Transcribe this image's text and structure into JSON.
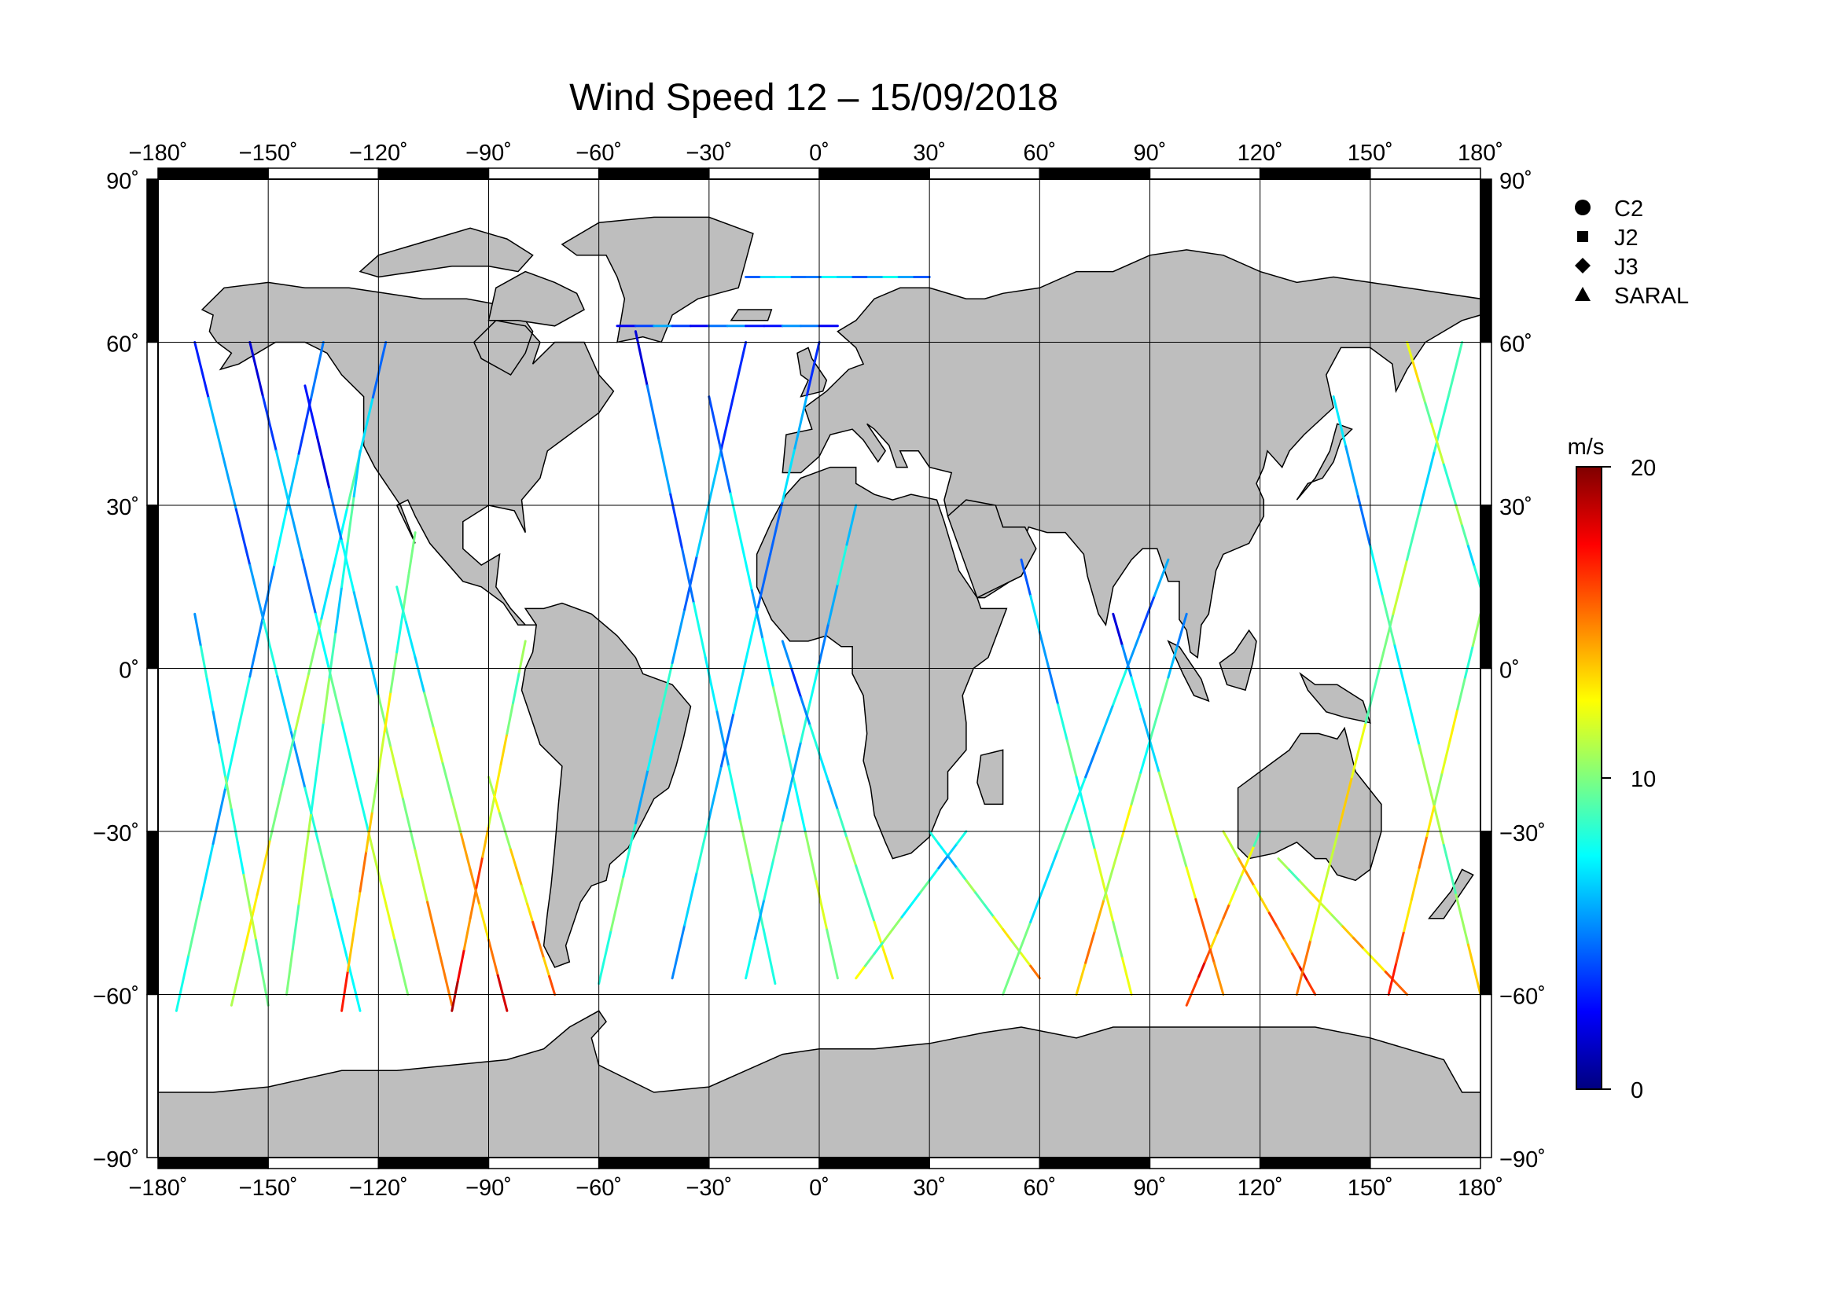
{
  "title": "Wind Speed 12 – 15/09/2018",
  "map": {
    "lon_range": [
      -180,
      180
    ],
    "lat_range": [
      -90,
      90
    ],
    "lon_ticks": [
      {
        "value": -180,
        "label": "−180˚"
      },
      {
        "value": -150,
        "label": "−150˚"
      },
      {
        "value": -120,
        "label": "−120˚"
      },
      {
        "value": -90,
        "label": "−90˚"
      },
      {
        "value": -60,
        "label": "−60˚"
      },
      {
        "value": -30,
        "label": "−30˚"
      },
      {
        "value": 0,
        "label": "0˚"
      },
      {
        "value": 30,
        "label": "30˚"
      },
      {
        "value": 60,
        "label": "60˚"
      },
      {
        "value": 90,
        "label": "90˚"
      },
      {
        "value": 120,
        "label": "120˚"
      },
      {
        "value": 150,
        "label": "150˚"
      },
      {
        "value": 180,
        "label": "180˚"
      }
    ],
    "lat_ticks": [
      {
        "value": 90,
        "label": "90˚"
      },
      {
        "value": 60,
        "label": "60˚"
      },
      {
        "value": 30,
        "label": "30˚"
      },
      {
        "value": 0,
        "label": "0˚"
      },
      {
        "value": -30,
        "label": "−30˚"
      },
      {
        "value": -60,
        "label": "−60˚"
      },
      {
        "value": -90,
        "label": "−90˚"
      }
    ],
    "grid": true,
    "land_color": "#bebebe",
    "ocean_color": "#ffffff"
  },
  "legend": {
    "placement": "top-right",
    "items": [
      {
        "label": "C2",
        "marker": "circle"
      },
      {
        "label": "J2",
        "marker": "square"
      },
      {
        "label": "J3",
        "marker": "diamond"
      },
      {
        "label": "SARAL",
        "marker": "triangle"
      }
    ]
  },
  "colorbar": {
    "unit": "m/s",
    "min": 0,
    "max": 20,
    "ticks": [
      {
        "value": 20,
        "label": "20"
      },
      {
        "value": 10,
        "label": "10"
      },
      {
        "value": 0,
        "label": "0"
      }
    ],
    "colors": [
      "#00007f",
      "#0000ff",
      "#007fff",
      "#00ffff",
      "#7fff7f",
      "#ffff00",
      "#ff7f00",
      "#ff0000",
      "#7f0000"
    ]
  },
  "chart_data": {
    "type": "scatter",
    "title": "Wind Speed 12 – 15/09/2018",
    "xlabel": "",
    "ylabel": "",
    "xlim": [
      -180,
      180
    ],
    "ylim": [
      -90,
      90
    ],
    "color_variable": "wind speed (m/s)",
    "series": [
      {
        "name": "C2"
      },
      {
        "name": "J2"
      },
      {
        "name": "J3"
      },
      {
        "name": "SARAL"
      }
    ],
    "tracks": [
      {
        "lon": [
          -175,
          -135
        ],
        "lat": [
          -63,
          60
        ],
        "ws": [
          8,
          5
        ]
      },
      {
        "lon": [
          -170,
          -125
        ],
        "lat": [
          60,
          -63
        ],
        "ws": [
          4,
          9
        ]
      },
      {
        "lon": [
          -160,
          -118
        ],
        "lat": [
          -62,
          60
        ],
        "ws": [
          13,
          6
        ]
      },
      {
        "lon": [
          -155,
          -112
        ],
        "lat": [
          60,
          -60
        ],
        "ws": [
          3,
          12
        ]
      },
      {
        "lon": [
          -145,
          -125
        ],
        "lat": [
          -60,
          40
        ],
        "ws": [
          11,
          7
        ]
      },
      {
        "lon": [
          -140,
          -100
        ],
        "lat": [
          52,
          -62
        ],
        "ws": [
          2,
          15
        ]
      },
      {
        "lon": [
          -130,
          -110
        ],
        "lat": [
          -63,
          25
        ],
        "ws": [
          16,
          8
        ]
      },
      {
        "lon": [
          -115,
          -85
        ],
        "lat": [
          15,
          -63
        ],
        "ws": [
          6,
          17
        ]
      },
      {
        "lon": [
          -100,
          -80
        ],
        "lat": [
          -63,
          5
        ],
        "ws": [
          18,
          9
        ]
      },
      {
        "lon": [
          -90,
          -72
        ],
        "lat": [
          -20,
          -60
        ],
        "ws": [
          10,
          16
        ]
      },
      {
        "lon": [
          -60,
          -20
        ],
        "lat": [
          -58,
          60
        ],
        "ws": [
          9,
          4
        ]
      },
      {
        "lon": [
          -50,
          -12
        ],
        "lat": [
          62,
          -58
        ],
        "ws": [
          3,
          10
        ]
      },
      {
        "lon": [
          -40,
          0
        ],
        "lat": [
          -57,
          60
        ],
        "ws": [
          7,
          5
        ]
      },
      {
        "lon": [
          -30,
          5
        ],
        "lat": [
          50,
          -57
        ],
        "ws": [
          5,
          11
        ]
      },
      {
        "lon": [
          -20,
          10
        ],
        "lat": [
          -57,
          30
        ],
        "ws": [
          8,
          6
        ]
      },
      {
        "lon": [
          -10,
          20
        ],
        "lat": [
          5,
          -57
        ],
        "ws": [
          4,
          12
        ]
      },
      {
        "lon": [
          10,
          40
        ],
        "lat": [
          -57,
          -30
        ],
        "ws": [
          11,
          6
        ]
      },
      {
        "lon": [
          30,
          60
        ],
        "lat": [
          -30,
          -57
        ],
        "ws": [
          6,
          14
        ]
      },
      {
        "lon": [
          50,
          95
        ],
        "lat": [
          -60,
          20
        ],
        "ws": [
          9,
          5
        ]
      },
      {
        "lon": [
          55,
          85
        ],
        "lat": [
          20,
          -60
        ],
        "ws": [
          4,
          13
        ]
      },
      {
        "lon": [
          70,
          100
        ],
        "lat": [
          -60,
          10
        ],
        "ws": [
          15,
          6
        ]
      },
      {
        "lon": [
          80,
          110
        ],
        "lat": [
          10,
          -60
        ],
        "ws": [
          3,
          17
        ]
      },
      {
        "lon": [
          100,
          120
        ],
        "lat": [
          -62,
          -30
        ],
        "ws": [
          18,
          10
        ]
      },
      {
        "lon": [
          110,
          135
        ],
        "lat": [
          -30,
          -60
        ],
        "ws": [
          12,
          17
        ]
      },
      {
        "lon": [
          125,
          160
        ],
        "lat": [
          -35,
          -60
        ],
        "ws": [
          10,
          15
        ]
      },
      {
        "lon": [
          130,
          175
        ],
        "lat": [
          -60,
          60
        ],
        "ws": [
          14,
          7
        ]
      },
      {
        "lon": [
          140,
          180
        ],
        "lat": [
          50,
          -60
        ],
        "ws": [
          5,
          12
        ]
      },
      {
        "lon": [
          155,
          180
        ],
        "lat": [
          -60,
          10
        ],
        "ws": [
          16,
          9
        ]
      },
      {
        "lon": [
          160,
          180
        ],
        "lat": [
          60,
          15
        ],
        "ws": [
          12,
          8
        ]
      },
      {
        "lon": [
          -170,
          -150
        ],
        "lat": [
          10,
          -62
        ],
        "ws": [
          6,
          11
        ]
      },
      {
        "lon": [
          -20,
          30
        ],
        "lat": [
          72,
          72
        ],
        "ws": [
          6,
          6
        ]
      },
      {
        "lon": [
          -55,
          5
        ],
        "lat": [
          63,
          63
        ],
        "ws": [
          4,
          4
        ]
      }
    ]
  }
}
